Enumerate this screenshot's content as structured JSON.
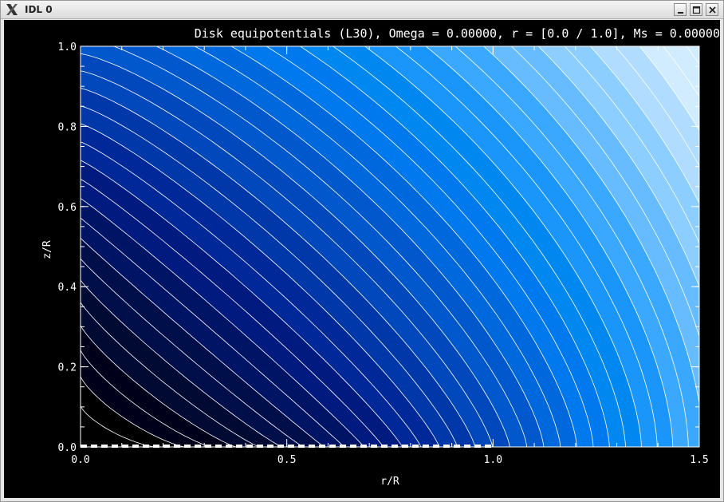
{
  "window": {
    "title": "IDL 0",
    "app_icon": "x11-logo-icon",
    "controls": [
      "minimize-icon",
      "maximize-icon",
      "close-icon"
    ]
  },
  "chart_data": {
    "type": "heatmap",
    "subtype": "filled-contour",
    "title": "Disk equipotentials (L30), Omega =  0.00000, r = [0.0 / 1.0], Ms =  0.00000",
    "xlabel": "r/R",
    "ylabel": "z/R",
    "xlim": [
      0.0,
      1.5
    ],
    "ylim": [
      0.0,
      1.0
    ],
    "x_ticks": [
      "0.0",
      "0.5",
      "1.0",
      "1.5"
    ],
    "y_ticks": [
      "0.0",
      "0.2",
      "0.4",
      "0.6",
      "0.8",
      "1.0"
    ],
    "disk": {
      "r_min": 0.0,
      "r_max": 1.0,
      "z": 0.0,
      "style": "dashed-white"
    },
    "contour_line_color": "#ffffff",
    "background_color": "#000000",
    "level_colors": [
      "#000000",
      "#00001a",
      "#000a33",
      "#000f4a",
      "#001466",
      "#001a80",
      "#002899",
      "#0038aa",
      "#0048bb",
      "#0058cc",
      "#0068dd",
      "#0078ee",
      "#0088f0",
      "#1a96fb",
      "#3aa8ff",
      "#66bcff",
      "#8cceff",
      "#b0ddff",
      "#d2ecff"
    ],
    "grid": false
  }
}
